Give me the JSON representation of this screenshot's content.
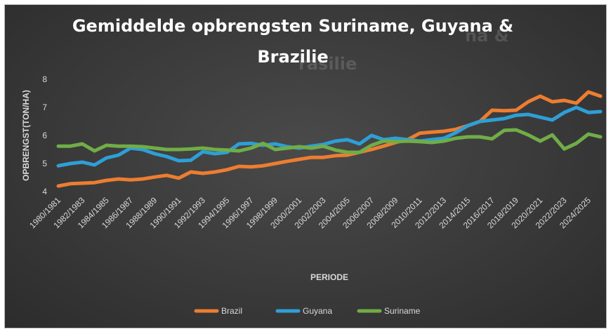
{
  "chart_data": {
    "type": "line",
    "title_line1": "Gemiddelde opbrengsten Suriname, Guyana &",
    "title_line2": "Brazilie",
    "xlabel": "PERIODE",
    "ylabel": "OPBRENGST(TON/HA)",
    "ylim": [
      4,
      8
    ],
    "yticks": [
      4,
      5,
      6,
      7,
      8
    ],
    "x_tick_labels": [
      "1980/1981",
      "1982/1983",
      "1984/1985",
      "1986/1987",
      "1988/1989",
      "1990/1991",
      "1992/1993",
      "1994/1995",
      "1996/1997",
      "1998/1999",
      "2000/2001",
      "2002/2003",
      "2004/2005",
      "2006/2007",
      "2008/2009",
      "2010/2011",
      "2012/2013",
      "2014/2015",
      "2016/2017",
      "2018/2019",
      "2020/2021",
      "2022/2023",
      "2024/2025"
    ],
    "categories": [
      "1980/1981",
      "1981/1982",
      "1982/1983",
      "1983/1984",
      "1984/1985",
      "1985/1986",
      "1986/1987",
      "1987/1988",
      "1988/1989",
      "1989/1990",
      "1990/1991",
      "1991/1992",
      "1992/1993",
      "1993/1994",
      "1994/1995",
      "1995/1996",
      "1996/1997",
      "1997/1998",
      "1998/1999",
      "1999/2000",
      "2000/2001",
      "2001/2002",
      "2002/2003",
      "2003/2004",
      "2004/2005",
      "2005/2006",
      "2006/2007",
      "2007/2008",
      "2008/2009",
      "2009/2010",
      "2010/2011",
      "2011/2012",
      "2012/2013",
      "2013/2014",
      "2014/2015",
      "2015/2016",
      "2016/2017",
      "2017/2018",
      "2018/2019",
      "2019/2020",
      "2020/2021",
      "2021/2022",
      "2022/2023",
      "2023/2024",
      "2024/2025",
      "2025/2026"
    ],
    "series": [
      {
        "name": "Brazil",
        "color": "#ed7d31",
        "values": [
          4.2,
          4.28,
          4.3,
          4.32,
          4.4,
          4.45,
          4.42,
          4.45,
          4.52,
          4.58,
          4.48,
          4.7,
          4.65,
          4.7,
          4.78,
          4.9,
          4.88,
          4.92,
          5.0,
          5.08,
          5.15,
          5.22,
          5.22,
          5.28,
          5.3,
          5.4,
          5.5,
          5.62,
          5.75,
          5.85,
          6.08,
          6.12,
          6.15,
          6.22,
          6.35,
          6.5,
          6.9,
          6.88,
          6.9,
          7.2,
          7.4,
          7.2,
          7.25,
          7.15,
          7.55,
          7.4
        ]
      },
      {
        "name": "Guyana",
        "color": "#2e9fd6",
        "values": [
          4.92,
          5.0,
          5.05,
          4.95,
          5.2,
          5.3,
          5.55,
          5.5,
          5.35,
          5.25,
          5.1,
          5.12,
          5.42,
          5.35,
          5.4,
          5.7,
          5.72,
          5.65,
          5.7,
          5.6,
          5.55,
          5.62,
          5.68,
          5.8,
          5.85,
          5.7,
          6.0,
          5.85,
          5.9,
          5.85,
          5.8,
          5.85,
          5.9,
          6.1,
          6.35,
          6.5,
          6.55,
          6.6,
          6.72,
          6.75,
          6.65,
          6.55,
          6.82,
          7.0,
          6.82,
          6.85
        ]
      },
      {
        "name": "Suriname",
        "color": "#70ad47",
        "values": [
          5.62,
          5.62,
          5.7,
          5.45,
          5.65,
          5.62,
          5.62,
          5.6,
          5.55,
          5.5,
          5.5,
          5.52,
          5.55,
          5.5,
          5.48,
          5.45,
          5.55,
          5.72,
          5.5,
          5.55,
          5.6,
          5.55,
          5.62,
          5.48,
          5.4,
          5.4,
          5.65,
          5.8,
          5.78,
          5.8,
          5.78,
          5.75,
          5.8,
          5.9,
          5.95,
          5.95,
          5.88,
          6.18,
          6.2,
          6.02,
          5.8,
          6.02,
          5.52,
          5.72,
          6.05,
          5.95
        ]
      }
    ],
    "grid": false,
    "legend_position": "bottom"
  },
  "ghost_text": {
    "line1": "na &",
    "line2": "rasilie"
  }
}
